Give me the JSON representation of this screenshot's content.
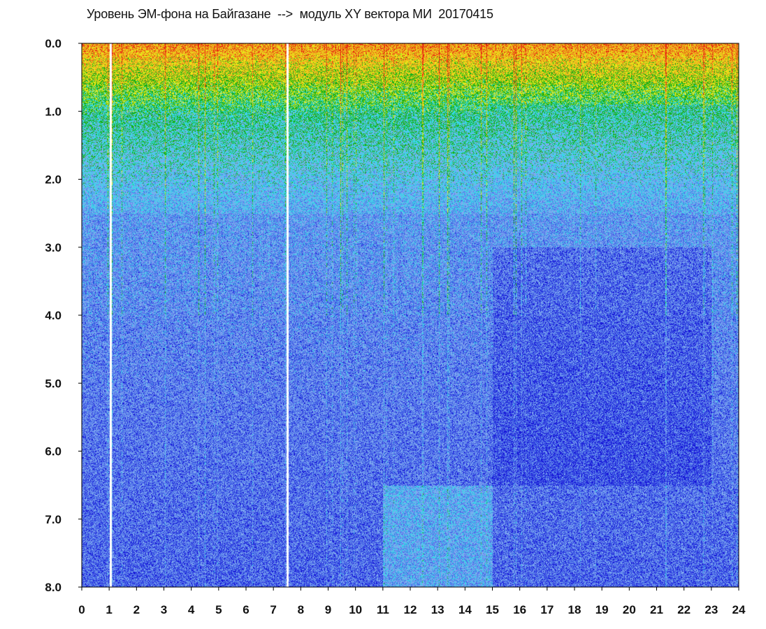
{
  "chart_data": {
    "type": "heatmap",
    "title": "Уровень ЭМ-фона на Байгазане  -->  модуль XY вектора МИ  20170415",
    "xlabel": "",
    "ylabel": "",
    "xlim": [
      0,
      24
    ],
    "ylim": [
      8.0,
      0.0
    ],
    "x_ticks": [
      "0",
      "1",
      "2",
      "3",
      "4",
      "5",
      "6",
      "7",
      "8",
      "9",
      "10",
      "11",
      "12",
      "13",
      "14",
      "15",
      "16",
      "17",
      "18",
      "19",
      "20",
      "21",
      "22",
      "23",
      "24"
    ],
    "y_ticks": [
      "0.0",
      "1.0",
      "2.0",
      "3.0",
      "4.0",
      "5.0",
      "6.0",
      "7.0",
      "8.0"
    ],
    "grid": false,
    "legend": "none",
    "colormap": [
      "#1818d8",
      "#4a6ee8",
      "#7fa8f0",
      "#36d8e8",
      "#18b018",
      "#e8e818",
      "#f0a020",
      "#e82010"
    ],
    "description_intensity_profile": [
      {
        "x_range": [
          0,
          15
        ],
        "high_band_y": [
          0.0,
          1.0
        ],
        "level": "high"
      },
      {
        "x_range": [
          15,
          24
        ],
        "high_band_y": [
          0.0,
          0.9
        ],
        "level": "high"
      },
      {
        "x_range": [
          0,
          24
        ],
        "mid_band_y": [
          1.0,
          2.5
        ],
        "level": "medium"
      },
      {
        "x_range": [
          0,
          24
        ],
        "low_band_y": [
          2.5,
          8.0
        ],
        "level": "low"
      }
    ],
    "vertical_gaps_x": [
      1.05,
      7.5
    ]
  }
}
